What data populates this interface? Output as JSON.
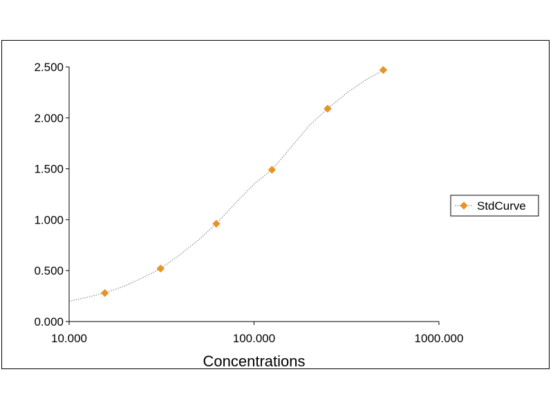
{
  "chart_data": {
    "type": "scatter",
    "title": "",
    "xlabel": "Concentrations",
    "ylabel": "",
    "x_scale": "log",
    "xlim": [
      10,
      1000
    ],
    "ylim": [
      0,
      2.5
    ],
    "x_ticks": [
      10,
      100,
      1000
    ],
    "x_tick_labels": [
      "10.000",
      "100.000",
      "1000.000"
    ],
    "y_ticks": [
      0,
      0.5,
      1,
      1.5,
      2,
      2.5
    ],
    "y_tick_labels": [
      "0.000",
      "0.500",
      "1.000",
      "1.500",
      "2.000",
      "2.500"
    ],
    "grid": false,
    "legend_position": "right",
    "series": [
      {
        "name": "StdCurve",
        "marker": "diamond",
        "marker_color": "#E69524",
        "line_style": "dotted",
        "line_color": "#8a8a8a",
        "x": [
          15.6,
          31.25,
          62.5,
          125,
          250,
          500
        ],
        "y": [
          0.28,
          0.52,
          0.96,
          1.49,
          2.09,
          2.47
        ]
      }
    ],
    "trendline": {
      "style": "dotted",
      "color": "#8a8a8a",
      "x": [
        10,
        12,
        15.6,
        20,
        25,
        31.25,
        40,
        50,
        62.5,
        80,
        100,
        125,
        160,
        200,
        250,
        320,
        400,
        500
      ],
      "y": [
        0.2,
        0.23,
        0.28,
        0.35,
        0.43,
        0.52,
        0.66,
        0.8,
        0.96,
        1.17,
        1.35,
        1.49,
        1.72,
        1.93,
        2.09,
        2.25,
        2.37,
        2.47
      ]
    }
  }
}
